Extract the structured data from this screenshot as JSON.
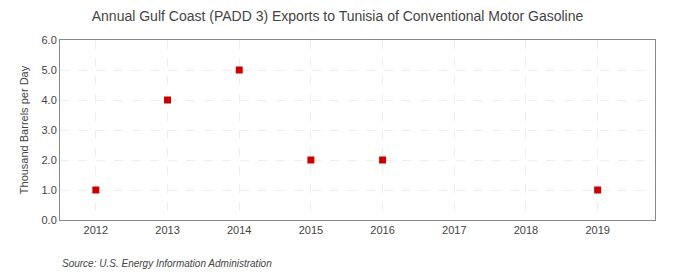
{
  "chart_data": {
    "type": "scatter",
    "title": "Annual Gulf Coast (PADD 3) Exports to Tunisia of Conventional Motor Gasoline",
    "y_label": "Thousand Barrels per Day",
    "annotations": [
      "Source: U.S. Energy Information Administration"
    ],
    "x": [
      2012,
      2013,
      2014,
      2015,
      2016,
      2019
    ],
    "values": [
      1.0,
      4.0,
      5.0,
      2.0,
      2.0,
      1.0
    ],
    "color": "#cc0000",
    "marker": "square",
    "xlim": [
      2011.5,
      2019.8
    ],
    "ylim": [
      0.0,
      6.0
    ],
    "xticks": [
      2012,
      2013,
      2014,
      2015,
      2016,
      2017,
      2018,
      2019
    ],
    "yticks": [
      {
        "value": 0.0,
        "label": "0.0"
      },
      {
        "value": 1.0,
        "label": "1.0"
      },
      {
        "value": 2.0,
        "label": "2.0"
      },
      {
        "value": 3.0,
        "label": "3.0"
      },
      {
        "value": 4.0,
        "label": "4.0"
      },
      {
        "value": 5.0,
        "label": "5.0"
      },
      {
        "value": 6.0,
        "label": "6.0"
      }
    ],
    "grid": true
  }
}
